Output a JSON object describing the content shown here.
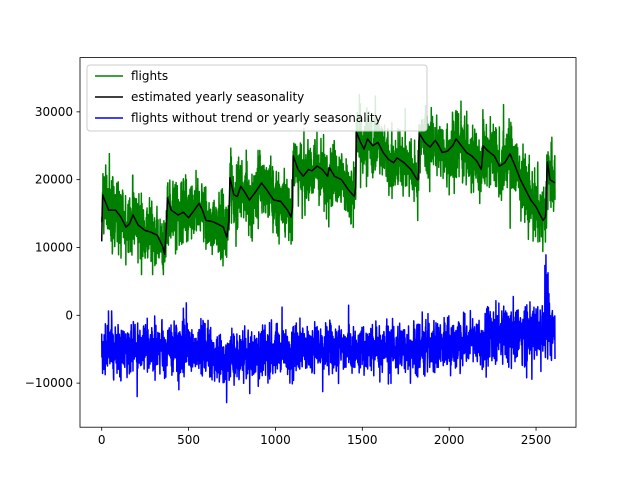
{
  "chart_data": {
    "type": "line",
    "title": "",
    "xlabel": "",
    "ylabel": "",
    "xlim": [
      -125,
      2730
    ],
    "ylim": [
      -16500,
      38000
    ],
    "xticks": [
      0,
      500,
      1000,
      1500,
      2000,
      2500
    ],
    "yticks": [
      -10000,
      0,
      10000,
      20000,
      30000
    ],
    "xtick_labels": [
      "0",
      "500",
      "1000",
      "1500",
      "2000",
      "2500"
    ],
    "ytick_labels": [
      "−10000",
      "0",
      "10000",
      "20000",
      "30000"
    ],
    "grid": false,
    "legend_position": "upper-left",
    "n_points": 2610,
    "series": [
      {
        "name": "flights",
        "color": "#008000",
        "trend": [
          [
            0,
            15200
          ],
          [
            365,
            13700
          ],
          [
            366,
            16500
          ],
          [
            730,
            14000
          ],
          [
            731,
            17800
          ],
          [
            1095,
            16500
          ],
          [
            1096,
            20000
          ],
          [
            1460,
            19000
          ],
          [
            1461,
            23000
          ],
          [
            1825,
            21000
          ],
          [
            1826,
            25500
          ],
          [
            2190,
            24500
          ],
          [
            2191,
            25500
          ],
          [
            2610,
            23000
          ]
        ],
        "range": [
          6000,
          35800
        ]
      },
      {
        "name": "estimated yearly seasonality",
        "color": "#000000",
        "keypoints": [
          [
            0,
            10900
          ],
          [
            5,
            17800
          ],
          [
            20,
            16800
          ],
          [
            40,
            15500
          ],
          [
            80,
            15500
          ],
          [
            110,
            14500
          ],
          [
            140,
            13000
          ],
          [
            160,
            13500
          ],
          [
            180,
            14800
          ],
          [
            210,
            13300
          ],
          [
            250,
            12500
          ],
          [
            280,
            12300
          ],
          [
            320,
            11800
          ],
          [
            350,
            10200
          ],
          [
            362,
            9000
          ],
          [
            372,
            12700
          ],
          [
            378,
            17300
          ],
          [
            400,
            15500
          ],
          [
            440,
            14800
          ],
          [
            470,
            15200
          ],
          [
            500,
            14400
          ],
          [
            530,
            15400
          ],
          [
            560,
            16500
          ],
          [
            580,
            15500
          ],
          [
            600,
            14000
          ],
          [
            640,
            13800
          ],
          [
            680,
            13300
          ],
          [
            700,
            13000
          ],
          [
            720,
            11500
          ],
          [
            732,
            14000
          ],
          [
            738,
            20300
          ],
          [
            760,
            17800
          ],
          [
            780,
            17500
          ],
          [
            800,
            19000
          ],
          [
            820,
            18300
          ],
          [
            850,
            17000
          ],
          [
            880,
            18000
          ],
          [
            920,
            19500
          ],
          [
            950,
            18500
          ],
          [
            990,
            17000
          ],
          [
            1030,
            16800
          ],
          [
            1070,
            15500
          ],
          [
            1090,
            14500
          ],
          [
            1098,
            16000
          ],
          [
            1102,
            23500
          ],
          [
            1130,
            21500
          ],
          [
            1160,
            20500
          ],
          [
            1190,
            21500
          ],
          [
            1210,
            21300
          ],
          [
            1240,
            22000
          ],
          [
            1270,
            21500
          ],
          [
            1300,
            20500
          ],
          [
            1310,
            21800
          ],
          [
            1340,
            20500
          ],
          [
            1380,
            20000
          ],
          [
            1420,
            18500
          ],
          [
            1455,
            17500
          ],
          [
            1462,
            19000
          ],
          [
            1466,
            27000
          ],
          [
            1490,
            25500
          ],
          [
            1510,
            24500
          ],
          [
            1530,
            26000
          ],
          [
            1560,
            25000
          ],
          [
            1590,
            25500
          ],
          [
            1620,
            24000
          ],
          [
            1650,
            23000
          ],
          [
            1680,
            22500
          ],
          [
            1700,
            23200
          ],
          [
            1740,
            22500
          ],
          [
            1780,
            21500
          ],
          [
            1815,
            20000
          ],
          [
            1822,
            20000
          ],
          [
            1828,
            26800
          ],
          [
            1860,
            25500
          ],
          [
            1890,
            24800
          ],
          [
            1920,
            25800
          ],
          [
            1940,
            25000
          ],
          [
            1960,
            24000
          ],
          [
            1990,
            24200
          ],
          [
            2020,
            25000
          ],
          [
            2040,
            26000
          ],
          [
            2070,
            25000
          ],
          [
            2100,
            24000
          ],
          [
            2130,
            23500
          ],
          [
            2160,
            22700
          ],
          [
            2185,
            21500
          ],
          [
            2192,
            23500
          ],
          [
            2196,
            25000
          ],
          [
            2220,
            24300
          ],
          [
            2260,
            23500
          ],
          [
            2290,
            22000
          ],
          [
            2320,
            22500
          ],
          [
            2350,
            23800
          ],
          [
            2380,
            22000
          ],
          [
            2410,
            20000
          ],
          [
            2440,
            18500
          ],
          [
            2470,
            17000
          ],
          [
            2500,
            16000
          ],
          [
            2540,
            14000
          ],
          [
            2555,
            14500
          ],
          [
            2565,
            22800
          ],
          [
            2580,
            20000
          ],
          [
            2610,
            19500
          ]
        ]
      },
      {
        "name": "flights without trend or yearly seasonality",
        "color": "#0000ff",
        "trend": [
          [
            0,
            -5000
          ],
          [
            300,
            -4600
          ],
          [
            600,
            -4800
          ],
          [
            700,
            -6800
          ],
          [
            900,
            -5400
          ],
          [
            1200,
            -4800
          ],
          [
            1500,
            -5000
          ],
          [
            1800,
            -4700
          ],
          [
            2000,
            -4200
          ],
          [
            2200,
            -3200
          ],
          [
            2400,
            -2400
          ],
          [
            2610,
            -2000
          ]
        ],
        "range": [
          -14000,
          10100
        ]
      }
    ]
  }
}
